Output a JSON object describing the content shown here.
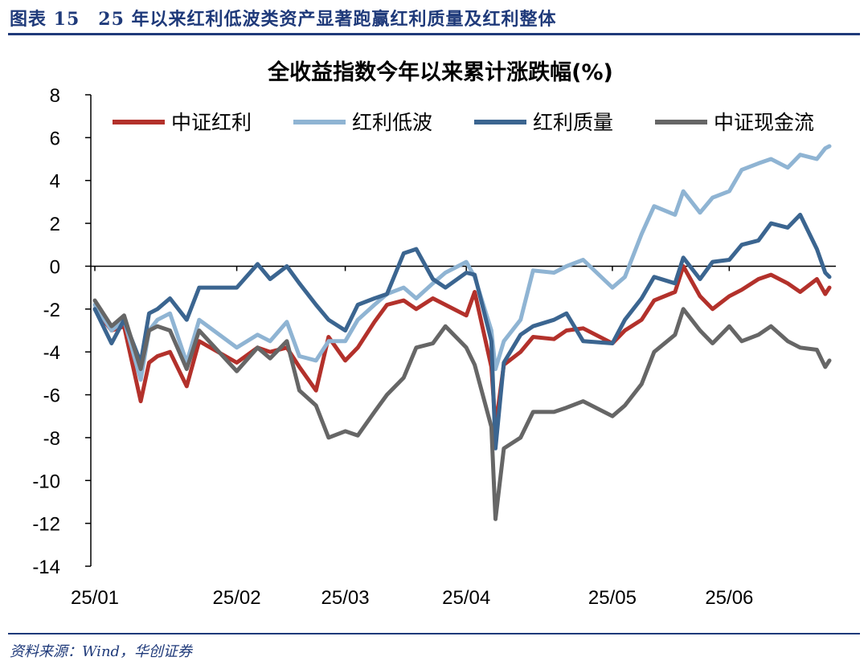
{
  "header": {
    "title": "图表 15　25 年以来红利低波类资产显著跑赢红利质量及红利整体"
  },
  "footer": {
    "source": "资料来源：Wind，华创证券"
  },
  "chart_data": {
    "type": "line",
    "title": "全收益指数今年以来累计涨跌幅(%)",
    "xlabel": "",
    "ylabel": "",
    "ylim": [
      -14,
      8
    ],
    "yticks": [
      8,
      6,
      4,
      2,
      0,
      -2,
      -4,
      -6,
      -8,
      -10,
      -12,
      -14
    ],
    "x_tick_labels": [
      "25/01",
      "25/02",
      "25/03",
      "25/04",
      "25/05",
      "25/06"
    ],
    "x_tick_dates": [
      "2025-01-02",
      "2025-02-05",
      "2025-03-03",
      "2025-04-01",
      "2025-05-06",
      "2025-06-03"
    ],
    "x_range": [
      "2025-01-02",
      "2025-06-27"
    ],
    "legend_position": "top",
    "series": [
      {
        "name": "中证红利",
        "color": "#b3312b",
        "x": [
          "2025-01-02",
          "2025-01-06",
          "2025-01-09",
          "2025-01-13",
          "2025-01-15",
          "2025-01-17",
          "2025-01-20",
          "2025-01-24",
          "2025-01-27",
          "2025-02-05",
          "2025-02-10",
          "2025-02-13",
          "2025-02-17",
          "2025-02-20",
          "2025-02-24",
          "2025-02-27",
          "2025-03-03",
          "2025-03-06",
          "2025-03-10",
          "2025-03-13",
          "2025-03-17",
          "2025-03-20",
          "2025-03-24",
          "2025-03-27",
          "2025-04-01",
          "2025-04-03",
          "2025-04-07",
          "2025-04-08",
          "2025-04-10",
          "2025-04-14",
          "2025-04-17",
          "2025-04-22",
          "2025-04-25",
          "2025-04-29",
          "2025-05-06",
          "2025-05-09",
          "2025-05-13",
          "2025-05-16",
          "2025-05-21",
          "2025-05-23",
          "2025-05-27",
          "2025-05-30",
          "2025-06-03",
          "2025-06-06",
          "2025-06-10",
          "2025-06-13",
          "2025-06-17",
          "2025-06-20",
          "2025-06-24",
          "2025-06-26",
          "2025-06-27"
        ],
        "values": [
          -2.0,
          -3.0,
          -2.8,
          -6.3,
          -4.5,
          -4.2,
          -4.0,
          -5.6,
          -3.5,
          -4.5,
          -3.8,
          -4.0,
          -3.8,
          -4.7,
          -5.8,
          -3.3,
          -4.4,
          -3.8,
          -2.6,
          -1.8,
          -1.6,
          -2.0,
          -1.5,
          -1.8,
          -2.3,
          -1.2,
          -4.7,
          -7.5,
          -4.6,
          -4.0,
          -3.3,
          -3.4,
          -3.0,
          -2.9,
          -3.6,
          -3.0,
          -2.5,
          -1.6,
          -1.2,
          0.0,
          -1.4,
          -2.0,
          -1.4,
          -1.1,
          -0.6,
          -0.4,
          -0.8,
          -1.2,
          -0.6,
          -1.3,
          -1.0
        ]
      },
      {
        "name": "红利低波",
        "color": "#8fb4d3",
        "x": [
          "2025-01-02",
          "2025-01-06",
          "2025-01-09",
          "2025-01-13",
          "2025-01-15",
          "2025-01-17",
          "2025-01-20",
          "2025-01-24",
          "2025-01-27",
          "2025-02-05",
          "2025-02-10",
          "2025-02-13",
          "2025-02-17",
          "2025-02-20",
          "2025-02-24",
          "2025-02-27",
          "2025-03-03",
          "2025-03-06",
          "2025-03-10",
          "2025-03-13",
          "2025-03-17",
          "2025-03-20",
          "2025-03-24",
          "2025-03-27",
          "2025-04-01",
          "2025-04-03",
          "2025-04-07",
          "2025-04-08",
          "2025-04-10",
          "2025-04-14",
          "2025-04-17",
          "2025-04-22",
          "2025-04-25",
          "2025-04-29",
          "2025-05-06",
          "2025-05-09",
          "2025-05-13",
          "2025-05-16",
          "2025-05-21",
          "2025-05-23",
          "2025-05-27",
          "2025-05-30",
          "2025-06-03",
          "2025-06-06",
          "2025-06-10",
          "2025-06-13",
          "2025-06-17",
          "2025-06-20",
          "2025-06-24",
          "2025-06-26",
          "2025-06-27"
        ],
        "values": [
          -1.8,
          -3.0,
          -2.5,
          -5.3,
          -3.0,
          -2.5,
          -2.2,
          -4.5,
          -2.5,
          -3.8,
          -3.2,
          -3.5,
          -2.6,
          -4.2,
          -4.4,
          -3.5,
          -3.5,
          -2.5,
          -1.8,
          -1.3,
          -1.0,
          -1.5,
          -0.8,
          -0.3,
          0.2,
          -0.5,
          -3.0,
          -4.8,
          -3.5,
          -2.5,
          -0.2,
          -0.3,
          0.0,
          0.3,
          -1.0,
          -0.5,
          1.5,
          2.8,
          2.4,
          3.5,
          2.5,
          3.2,
          3.5,
          4.5,
          4.8,
          5.0,
          4.6,
          5.2,
          5.0,
          5.5,
          5.6
        ]
      },
      {
        "name": "红利质量",
        "color": "#3b6590",
        "x": [
          "2025-01-02",
          "2025-01-06",
          "2025-01-09",
          "2025-01-13",
          "2025-01-15",
          "2025-01-17",
          "2025-01-20",
          "2025-01-24",
          "2025-01-27",
          "2025-02-05",
          "2025-02-10",
          "2025-02-13",
          "2025-02-17",
          "2025-02-20",
          "2025-02-24",
          "2025-02-27",
          "2025-03-03",
          "2025-03-06",
          "2025-03-10",
          "2025-03-13",
          "2025-03-17",
          "2025-03-20",
          "2025-03-24",
          "2025-03-27",
          "2025-04-01",
          "2025-04-03",
          "2025-04-07",
          "2025-04-08",
          "2025-04-10",
          "2025-04-14",
          "2025-04-17",
          "2025-04-22",
          "2025-04-25",
          "2025-04-29",
          "2025-05-06",
          "2025-05-09",
          "2025-05-13",
          "2025-05-16",
          "2025-05-21",
          "2025-05-23",
          "2025-05-27",
          "2025-05-30",
          "2025-06-03",
          "2025-06-06",
          "2025-06-10",
          "2025-06-13",
          "2025-06-17",
          "2025-06-20",
          "2025-06-24",
          "2025-06-26",
          "2025-06-27"
        ],
        "values": [
          -2.0,
          -3.6,
          -2.5,
          -4.5,
          -2.2,
          -2.0,
          -1.5,
          -2.5,
          -1.0,
          -1.0,
          0.1,
          -0.6,
          0.0,
          -0.8,
          -1.8,
          -2.5,
          -3.0,
          -1.8,
          -1.5,
          -1.3,
          0.6,
          0.8,
          -0.6,
          -1.0,
          -0.3,
          -0.4,
          -3.5,
          -8.5,
          -4.5,
          -3.2,
          -2.8,
          -2.5,
          -2.2,
          -3.5,
          -3.6,
          -2.5,
          -1.5,
          -0.5,
          -0.8,
          0.4,
          -0.6,
          0.2,
          0.3,
          1.0,
          1.2,
          2.0,
          1.8,
          2.4,
          0.8,
          -0.3,
          -0.5
        ]
      },
      {
        "name": "中证现金流",
        "color": "#666666",
        "x": [
          "2025-01-02",
          "2025-01-06",
          "2025-01-09",
          "2025-01-13",
          "2025-01-15",
          "2025-01-17",
          "2025-01-20",
          "2025-01-24",
          "2025-01-27",
          "2025-02-05",
          "2025-02-10",
          "2025-02-13",
          "2025-02-17",
          "2025-02-20",
          "2025-02-24",
          "2025-02-27",
          "2025-03-03",
          "2025-03-06",
          "2025-03-10",
          "2025-03-13",
          "2025-03-17",
          "2025-03-20",
          "2025-03-24",
          "2025-03-27",
          "2025-04-01",
          "2025-04-03",
          "2025-04-07",
          "2025-04-08",
          "2025-04-10",
          "2025-04-14",
          "2025-04-17",
          "2025-04-22",
          "2025-04-25",
          "2025-04-29",
          "2025-05-06",
          "2025-05-09",
          "2025-05-13",
          "2025-05-16",
          "2025-05-21",
          "2025-05-23",
          "2025-05-27",
          "2025-05-30",
          "2025-06-03",
          "2025-06-06",
          "2025-06-10",
          "2025-06-13",
          "2025-06-17",
          "2025-06-20",
          "2025-06-24",
          "2025-06-26",
          "2025-06-27"
        ],
        "values": [
          -1.6,
          -2.8,
          -2.3,
          -4.8,
          -3.0,
          -2.8,
          -3.0,
          -4.8,
          -3.0,
          -4.9,
          -3.8,
          -4.3,
          -3.5,
          -5.8,
          -6.5,
          -8.0,
          -7.7,
          -7.9,
          -6.8,
          -6.0,
          -5.2,
          -3.8,
          -3.6,
          -2.8,
          -3.8,
          -4.6,
          -7.5,
          -11.8,
          -8.5,
          -8.0,
          -6.8,
          -6.8,
          -6.6,
          -6.3,
          -7.0,
          -6.5,
          -5.5,
          -4.0,
          -3.2,
          -2.0,
          -3.0,
          -3.6,
          -2.8,
          -3.5,
          -3.2,
          -2.8,
          -3.5,
          -3.8,
          -3.9,
          -4.7,
          -4.4
        ]
      }
    ]
  }
}
